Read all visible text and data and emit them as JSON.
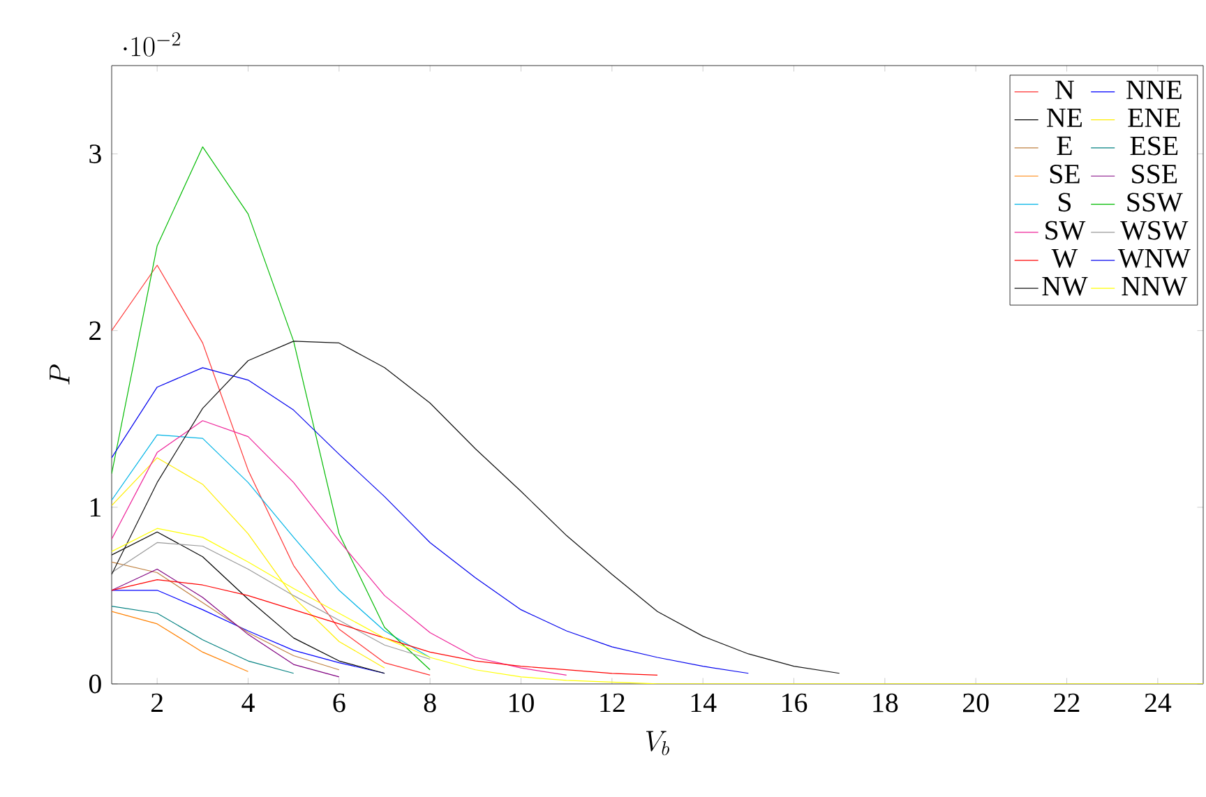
{
  "chart_data": {
    "type": "line",
    "xlabel": "V_b",
    "ylabel": "P",
    "annotations": [
      "\\cdot 10^{-2}"
    ],
    "x": [
      1,
      2,
      3,
      4,
      5,
      6,
      7,
      8,
      9,
      10,
      11,
      12,
      13,
      14,
      15,
      16,
      17,
      18,
      19,
      20,
      21,
      22,
      23,
      24,
      25
    ],
    "xlim": [
      1,
      25
    ],
    "ylim": [
      0,
      3.5
    ],
    "xticks": [
      2,
      4,
      6,
      8,
      10,
      12,
      14,
      16,
      18,
      20,
      22,
      24
    ],
    "yticks": [
      0,
      1,
      2,
      3
    ],
    "grid": false,
    "legend": "top right",
    "series": [
      {
        "name": "N",
        "color": "#ff3333",
        "values": [
          2.0,
          2.37,
          1.93,
          1.21,
          0.67,
          0.31,
          0.12,
          0.05,
          null,
          null,
          null,
          null,
          null,
          null,
          null,
          null,
          null,
          null,
          null,
          null,
          null,
          null,
          null,
          null,
          null
        ]
      },
      {
        "name": "NNE",
        "color": "#0000ff",
        "values": [
          0.53,
          0.53,
          0.42,
          0.3,
          0.19,
          0.12,
          0.06,
          null,
          null,
          null,
          null,
          null,
          null,
          null,
          null,
          null,
          null,
          null,
          null,
          null,
          null,
          null,
          null,
          null,
          null
        ]
      },
      {
        "name": "NE",
        "color": "#000000",
        "values": [
          0.73,
          0.86,
          0.72,
          0.48,
          0.26,
          0.13,
          0.06,
          null,
          null,
          null,
          null,
          null,
          null,
          null,
          null,
          null,
          null,
          null,
          null,
          null,
          null,
          null,
          null,
          null,
          null
        ]
      },
      {
        "name": "ENE",
        "color": "#ffee00",
        "values": [
          1.01,
          1.28,
          1.13,
          0.85,
          0.49,
          0.24,
          0.09,
          null,
          null,
          null,
          null,
          null,
          null,
          null,
          null,
          null,
          null,
          null,
          null,
          null,
          null,
          null,
          null,
          null,
          null
        ]
      },
      {
        "name": "E",
        "color": "#bf8040",
        "values": [
          0.69,
          0.63,
          0.46,
          0.29,
          0.16,
          0.08,
          null,
          null,
          null,
          null,
          null,
          null,
          null,
          null,
          null,
          null,
          null,
          null,
          null,
          null,
          null,
          null,
          null,
          null,
          null
        ]
      },
      {
        "name": "ESE",
        "color": "#008080",
        "values": [
          0.44,
          0.4,
          0.25,
          0.13,
          0.06,
          null,
          null,
          null,
          null,
          null,
          null,
          null,
          null,
          null,
          null,
          null,
          null,
          null,
          null,
          null,
          null,
          null,
          null,
          null,
          null
        ]
      },
      {
        "name": "SE",
        "color": "#ff8000",
        "values": [
          0.41,
          0.34,
          0.18,
          0.07,
          null,
          null,
          null,
          null,
          null,
          null,
          null,
          null,
          null,
          null,
          null,
          null,
          null,
          null,
          null,
          null,
          null,
          null,
          null,
          null,
          null
        ]
      },
      {
        "name": "SSE",
        "color": "#800080",
        "values": [
          0.53,
          0.65,
          0.49,
          0.28,
          0.11,
          0.04,
          null,
          null,
          null,
          null,
          null,
          null,
          null,
          null,
          null,
          null,
          null,
          null,
          null,
          null,
          null,
          null,
          null,
          null,
          null
        ]
      },
      {
        "name": "S",
        "color": "#00b4e6",
        "values": [
          1.04,
          1.41,
          1.39,
          1.14,
          0.83,
          0.53,
          0.3,
          0.15,
          null,
          null,
          null,
          null,
          null,
          null,
          null,
          null,
          null,
          null,
          null,
          null,
          null,
          null,
          null,
          null,
          null
        ]
      },
      {
        "name": "SSW",
        "color": "#00bb00",
        "values": [
          1.19,
          2.48,
          3.04,
          2.66,
          1.94,
          0.85,
          0.32,
          0.08,
          null,
          null,
          null,
          null,
          null,
          null,
          null,
          null,
          null,
          null,
          null,
          null,
          null,
          null,
          null,
          null,
          null
        ]
      },
      {
        "name": "SW",
        "color": "#ee2299",
        "values": [
          0.82,
          1.31,
          1.49,
          1.4,
          1.14,
          0.81,
          0.5,
          0.29,
          0.15,
          0.09,
          0.05,
          null,
          null,
          null,
          null,
          null,
          null,
          null,
          null,
          null,
          null,
          null,
          null,
          null,
          null
        ]
      },
      {
        "name": "WSW",
        "color": "#999999",
        "values": [
          0.63,
          0.8,
          0.78,
          0.65,
          0.5,
          0.36,
          0.22,
          0.14,
          null,
          null,
          null,
          null,
          null,
          null,
          null,
          null,
          null,
          null,
          null,
          null,
          null,
          null,
          null,
          null,
          null
        ]
      },
      {
        "name": "W",
        "color": "#ff0000",
        "values": [
          0.53,
          0.59,
          0.56,
          0.5,
          0.42,
          0.34,
          0.26,
          0.18,
          0.13,
          0.1,
          0.08,
          0.06,
          0.05,
          null,
          null,
          null,
          null,
          null,
          null,
          null,
          null,
          null,
          null,
          null,
          null
        ]
      },
      {
        "name": "WNW",
        "color": "#0000ee",
        "values": [
          1.28,
          1.68,
          1.79,
          1.72,
          1.55,
          1.3,
          1.06,
          0.8,
          0.6,
          0.42,
          0.3,
          0.21,
          0.15,
          0.1,
          0.06,
          null,
          null,
          null,
          null,
          null,
          null,
          null,
          null,
          null,
          null
        ]
      },
      {
        "name": "NW",
        "color": "#111111",
        "values": [
          0.62,
          1.14,
          1.56,
          1.83,
          1.94,
          1.93,
          1.79,
          1.59,
          1.33,
          1.09,
          0.84,
          0.62,
          0.41,
          0.27,
          0.17,
          0.1,
          0.06,
          null,
          null,
          null,
          null,
          null,
          null,
          null,
          null
        ]
      },
      {
        "name": "NNW",
        "color": "#ffff00",
        "values": [
          0.75,
          0.88,
          0.83,
          0.69,
          0.54,
          0.4,
          0.26,
          0.15,
          0.08,
          0.04,
          0.02,
          0.01,
          0,
          0,
          0,
          0,
          0,
          0,
          0,
          0,
          0,
          0,
          0,
          0,
          0
        ]
      }
    ]
  }
}
